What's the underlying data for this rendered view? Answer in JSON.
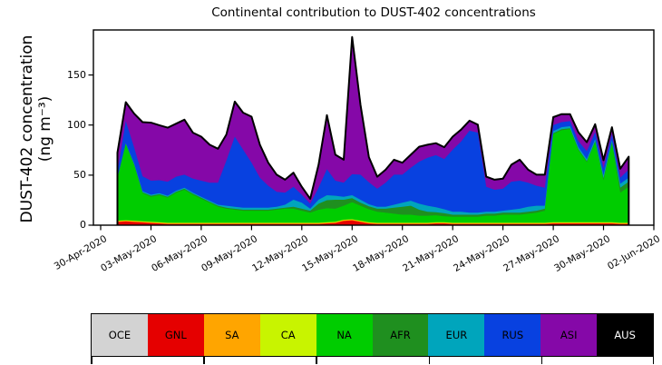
{
  "title": "Continental contribution to DUST-402 concentrations",
  "ylabel": {
    "line1": "DUST-402 concentration",
    "line2": "(ng m⁻³)"
  },
  "legend": {
    "items": [
      {
        "label": "OCE",
        "color": "#d3d3d3",
        "text_color": "#000000"
      },
      {
        "label": "GNL",
        "color": "#e50000",
        "text_color": "#000000"
      },
      {
        "label": "SA",
        "color": "#ffa500",
        "text_color": "#000000"
      },
      {
        "label": "CA",
        "color": "#c8f400",
        "text_color": "#000000"
      },
      {
        "label": "NA",
        "color": "#00cc00",
        "text_color": "#000000"
      },
      {
        "label": "AFR",
        "color": "#1f8f1f",
        "text_color": "#000000"
      },
      {
        "label": "EUR",
        "color": "#00a5bc",
        "text_color": "#000000"
      },
      {
        "label": "RUS",
        "color": "#0841e0",
        "text_color": "#000000"
      },
      {
        "label": "ASI",
        "color": "#8508a8",
        "text_color": "#000000"
      },
      {
        "label": "AUS",
        "color": "#000000",
        "text_color": "#ffffff"
      }
    ]
  },
  "chart_data": {
    "type": "area",
    "stacked": true,
    "title": "Continental contribution to DUST-402 concentrations",
    "ylabel": "DUST-402 concentration (ng m-3)",
    "ylim": [
      0,
      195
    ],
    "grid": false,
    "legend_position": "bottom",
    "x_unit": "days since 30-Apr-2020 (half-day resolution, estimated from plot)",
    "x": [
      1,
      1.5,
      2,
      2.5,
      3,
      3.5,
      4,
      4.5,
      5,
      5.5,
      6,
      6.5,
      7,
      7.5,
      8,
      8.5,
      9,
      9.5,
      10,
      10.5,
      11,
      11.5,
      12,
      12.5,
      13,
      13.5,
      14,
      14.5,
      15,
      15.5,
      16,
      16.5,
      17,
      17.5,
      18,
      18.5,
      19,
      19.5,
      20,
      20.5,
      21,
      21.5,
      22,
      22.5,
      23,
      23.5,
      24,
      24.5,
      25,
      25.5,
      26,
      26.5,
      27,
      27.5,
      28,
      28.5,
      29,
      29.5,
      30,
      30.5,
      31,
      31.5
    ],
    "x_ticks": {
      "days": [
        0,
        3,
        6,
        9,
        12,
        15,
        18,
        21,
        24,
        27,
        30,
        33
      ],
      "labels": [
        "30-Apr-2020",
        "03-May-2020",
        "06-May-2020",
        "09-May-2020",
        "12-May-2020",
        "15-May-2020",
        "18-May-2020",
        "21-May-2020",
        "24-May-2020",
        "27-May-2020",
        "30-May-2020",
        "02-Jun-2020"
      ]
    },
    "y_ticks": [
      0,
      50,
      100,
      150
    ],
    "series": [
      {
        "name": "OCE",
        "color": "#d3d3d3",
        "constant": 0.2
      },
      {
        "name": "GNL",
        "color": "#e50000",
        "values": [
          3,
          3.5,
          3,
          2.5,
          2,
          1.5,
          1,
          1,
          1,
          1,
          1,
          1,
          1,
          1,
          1,
          1,
          1,
          1,
          1,
          1,
          1,
          1,
          1,
          1,
          1,
          1.5,
          2,
          4,
          4.5,
          3,
          1.5,
          1,
          1,
          1,
          1,
          1,
          1,
          1,
          1.5,
          1.5,
          1,
          1,
          1,
          1,
          1,
          1,
          1,
          1,
          1,
          1,
          1,
          1,
          1.5,
          1.5,
          1.5,
          1.5,
          1.5,
          1.5,
          1.5,
          1.5,
          1,
          1
        ]
      },
      {
        "name": "SA",
        "color": "#ffa500",
        "constant": 0.8
      },
      {
        "name": "CA",
        "color": "#c8f400",
        "constant": 0.4
      },
      {
        "name": "NA",
        "color": "#00cc00",
        "values": [
          42,
          76,
          55,
          28,
          25,
          27,
          25,
          30,
          33,
          28,
          24,
          20,
          16,
          14,
          13,
          12,
          12,
          12,
          12,
          13,
          14,
          14,
          12,
          10,
          13,
          14,
          13,
          14,
          17,
          15,
          13,
          11,
          10,
          9,
          8,
          8,
          7,
          7,
          7,
          6,
          6,
          6,
          6,
          6,
          7,
          7,
          8,
          8,
          8,
          9,
          10,
          12,
          88,
          92,
          93,
          72,
          60,
          80,
          42,
          78,
          30,
          36
        ]
      },
      {
        "name": "AFR",
        "color": "#1f8f1f",
        "values": [
          0.5,
          0.5,
          1,
          1,
          1,
          1,
          1,
          1,
          1,
          1,
          1,
          1,
          1,
          1,
          1,
          1,
          1,
          1,
          1,
          1,
          1,
          2,
          2,
          2,
          6,
          8,
          9,
          6,
          4,
          3,
          3,
          3,
          4,
          6,
          8,
          9,
          6,
          4,
          3,
          3,
          2,
          2,
          2,
          2,
          2,
          2,
          2,
          2,
          2,
          2,
          2,
          2,
          1,
          1,
          1,
          1,
          1,
          1,
          2,
          2,
          5,
          5
        ]
      },
      {
        "name": "EUR",
        "color": "#00a5bc",
        "values": [
          0.5,
          0.5,
          1,
          1,
          1,
          1,
          1,
          1,
          1,
          1,
          1,
          1,
          1,
          2,
          2,
          2,
          2,
          2,
          2,
          2,
          3,
          7,
          6,
          2,
          4,
          5,
          4,
          3,
          3,
          3,
          2,
          2,
          2,
          3,
          4,
          5,
          6,
          6,
          5,
          4,
          3,
          3,
          2,
          2,
          2,
          2,
          2,
          3,
          4,
          5,
          5,
          3,
          2,
          2,
          2,
          2,
          2,
          2,
          3,
          2,
          4,
          4
        ]
      },
      {
        "name": "RUS",
        "color": "#0841e0",
        "values": [
          6,
          22,
          16,
          15,
          14,
          13,
          14,
          14,
          13,
          14,
          16,
          18,
          22,
          45,
          70,
          58,
          45,
          30,
          22,
          15,
          12,
          13,
          8,
          5,
          12,
          26,
          15,
          14,
          21,
          25,
          22,
          18,
          24,
          30,
          28,
          33,
          42,
          48,
          52,
          50,
          62,
          70,
          82,
          80,
          25,
          22,
          22,
          28,
          28,
          24,
          20,
          18,
          6,
          5,
          5,
          6,
          8,
          7,
          7,
          6,
          6,
          8
        ]
      },
      {
        "name": "ASI",
        "color": "#8508a8",
        "values": [
          19,
          19,
          34,
          54,
          58,
          55,
          54,
          53,
          55,
          46,
          44,
          38,
          34,
          26,
          35,
          37,
          46,
          33,
          23,
          17,
          13,
          14,
          8,
          5,
          23,
          54,
          26,
          23,
          137,
          70,
          25,
          12,
          13,
          15,
          12,
          13,
          15,
          13,
          12,
          12,
          13,
          12,
          10,
          8,
          10,
          10,
          10,
          17,
          21,
          13,
          11,
          13,
          8,
          8,
          7,
          9,
          9,
          8,
          8,
          7,
          9,
          13
        ]
      },
      {
        "name": "AUS",
        "color": "#000000",
        "constant": 0
      }
    ]
  }
}
